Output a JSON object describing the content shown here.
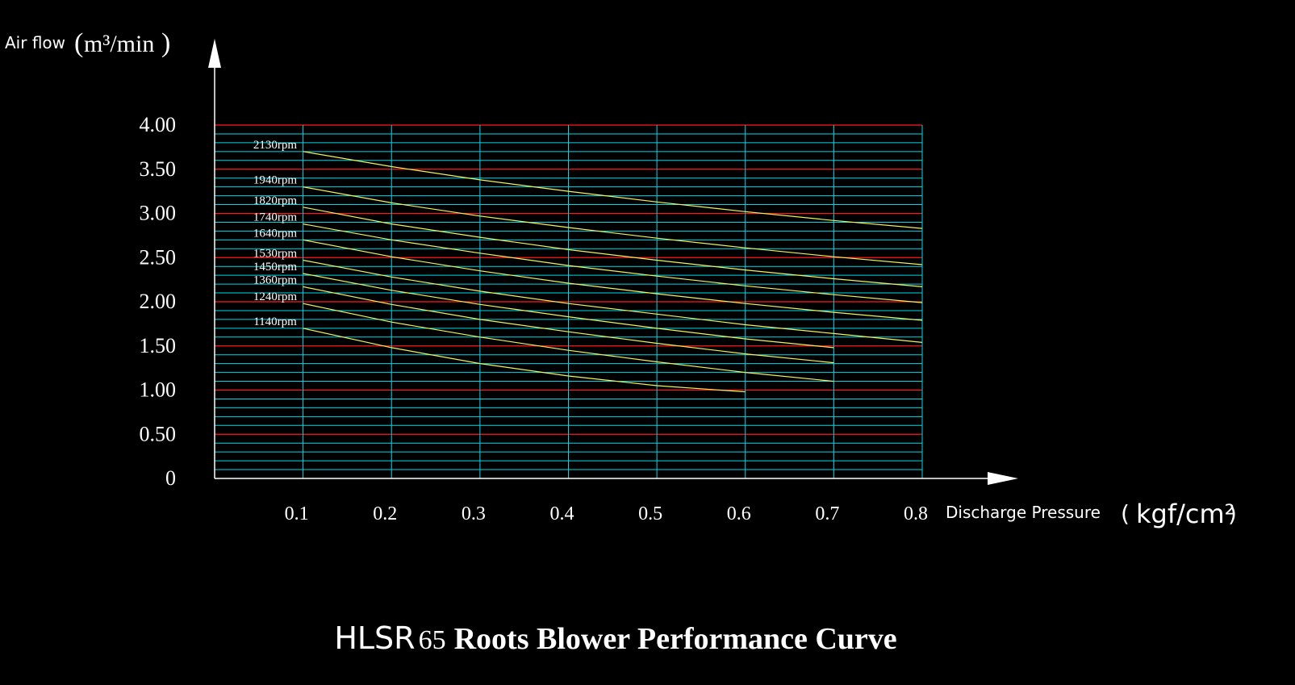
{
  "chart_data": {
    "type": "line",
    "title_prefix": "HLSR",
    "title_model": "65",
    "title_rest": "Roots Blower Performance Curve",
    "ylabel_text": "Air flow",
    "ylabel_unit": "m³/min",
    "xlabel_text": "Discharge Pressure",
    "xlabel_unit": "kgf/cm²",
    "xlim": [
      0,
      0.8
    ],
    "ylim": [
      0,
      4.0
    ],
    "x_ticks": [
      0.1,
      0.2,
      0.3,
      0.4,
      0.5,
      0.6,
      0.7,
      0.8
    ],
    "x_tick_labels": [
      "0.1",
      "0.2",
      "0.3",
      "0.4",
      "0.5",
      "0.6",
      "0.7",
      "0.8"
    ],
    "y_ticks": [
      0,
      0.5,
      1.0,
      1.5,
      2.0,
      2.5,
      3.0,
      3.5,
      4.0
    ],
    "y_tick_labels": [
      "0",
      "0.50",
      "1.00",
      "1.50",
      "2.00",
      "2.50",
      "3.00",
      "3.50",
      "4.00"
    ],
    "grid": true,
    "colors": {
      "background": "#000000",
      "grid_minor": "#00d8e8",
      "grid_major": "#ff1a1a",
      "curve": "#f2f25a",
      "text": "#ffffff"
    },
    "series": [
      {
        "name": "2130rpm",
        "x": [
          0.1,
          0.2,
          0.3,
          0.4,
          0.5,
          0.6,
          0.7,
          0.8
        ],
        "y": [
          3.7,
          3.53,
          3.38,
          3.25,
          3.13,
          3.02,
          2.92,
          2.83
        ]
      },
      {
        "name": "1940rpm",
        "x": [
          0.1,
          0.2,
          0.3,
          0.4,
          0.5,
          0.6,
          0.7,
          0.8
        ],
        "y": [
          3.3,
          3.12,
          2.97,
          2.84,
          2.72,
          2.61,
          2.51,
          2.42
        ]
      },
      {
        "name": "1820rpm",
        "x": [
          0.1,
          0.2,
          0.3,
          0.4,
          0.5,
          0.6,
          0.7,
          0.8
        ],
        "y": [
          3.07,
          2.88,
          2.73,
          2.59,
          2.47,
          2.36,
          2.26,
          2.17
        ]
      },
      {
        "name": "1740rpm",
        "x": [
          0.1,
          0.2,
          0.3,
          0.4,
          0.5,
          0.6,
          0.7,
          0.8
        ],
        "y": [
          2.88,
          2.7,
          2.55,
          2.41,
          2.29,
          2.18,
          2.08,
          1.99
        ]
      },
      {
        "name": "1640rpm",
        "x": [
          0.1,
          0.2,
          0.3,
          0.4,
          0.5,
          0.6,
          0.7,
          0.8
        ],
        "y": [
          2.7,
          2.51,
          2.35,
          2.21,
          2.09,
          1.98,
          1.88,
          1.79
        ]
      },
      {
        "name": "1530rpm",
        "x": [
          0.1,
          0.2,
          0.3,
          0.4,
          0.5,
          0.6,
          0.7,
          0.8
        ],
        "y": [
          2.47,
          2.28,
          2.12,
          1.98,
          1.86,
          1.74,
          1.64,
          1.54
        ]
      },
      {
        "name": "1450rpm",
        "x": [
          0.1,
          0.2,
          0.3,
          0.4,
          0.5,
          0.6,
          0.7
        ],
        "y": [
          2.32,
          2.13,
          1.97,
          1.83,
          1.7,
          1.58,
          1.48
        ]
      },
      {
        "name": "1360rpm",
        "x": [
          0.1,
          0.2,
          0.3,
          0.4,
          0.5,
          0.6,
          0.7
        ],
        "y": [
          2.17,
          1.97,
          1.8,
          1.66,
          1.53,
          1.41,
          1.31
        ]
      },
      {
        "name": "1240rpm",
        "x": [
          0.1,
          0.2,
          0.3,
          0.4,
          0.5,
          0.6,
          0.7
        ],
        "y": [
          1.98,
          1.77,
          1.6,
          1.45,
          1.32,
          1.2,
          1.1
        ]
      },
      {
        "name": "1140rpm",
        "x": [
          0.1,
          0.2,
          0.3,
          0.4,
          0.5,
          0.6
        ],
        "y": [
          1.7,
          1.48,
          1.3,
          1.16,
          1.05,
          0.98
        ]
      }
    ]
  }
}
